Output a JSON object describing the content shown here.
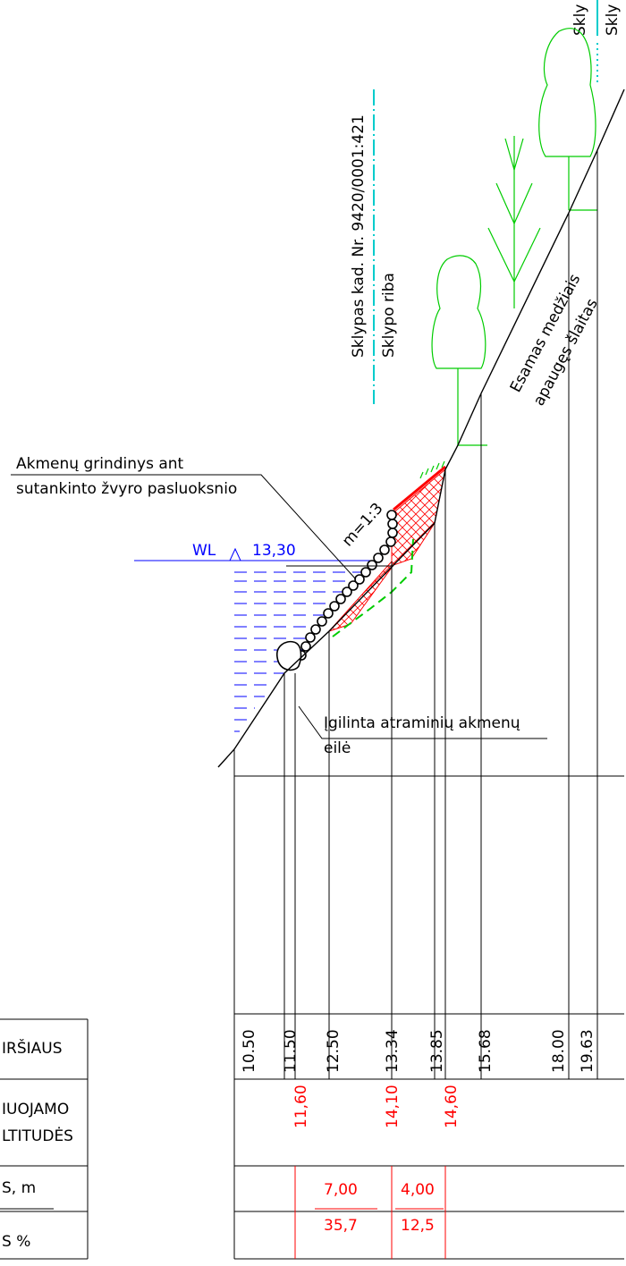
{
  "labels": {
    "plot_label": "Sklypas kad. Nr. 9420/0001:421",
    "plot_boundary": "Sklypo riba",
    "plot_partial_1": "Skly",
    "plot_partial_2": "Skly",
    "existing_slope_1": "Esamas medžiais",
    "existing_slope_2": "apaugęs šlaitas",
    "paving_1": "Akmenų grindinys ant",
    "paving_2": "sutankinto žvyro pasluoksnio",
    "wl_label": "WL",
    "wl_value": "13,30",
    "slope_ratio": "m=1:3",
    "stones_1": "Įgilinta atraminių akmenų",
    "stones_2": "eilė"
  },
  "table": {
    "row1_label": "IRŠIAUS",
    "row2_label_1": "IUOJAMO",
    "row2_label_2": "LTITUDĖS",
    "row3_label_1": "S, m",
    "row3_label_2": "S %",
    "existing": [
      "10.50",
      "11.50",
      "12.50",
      "13.34",
      "13.85",
      "15.68",
      "18.00",
      "19.63"
    ],
    "design": [
      "11,60",
      "14,10",
      "14,60"
    ],
    "lengths": [
      "7,00",
      "4,00"
    ],
    "slopes": [
      "35,7",
      "12,5"
    ]
  },
  "colors": {
    "ground": "#000000",
    "trees": "#00cc00",
    "water": "#0000ff",
    "design": "#ff0000",
    "boundary": "#00cccc"
  }
}
